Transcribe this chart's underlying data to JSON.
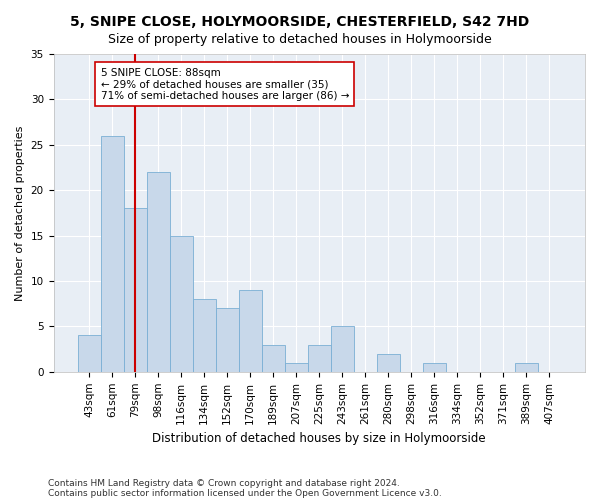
{
  "title": "5, SNIPE CLOSE, HOLYMOORSIDE, CHESTERFIELD, S42 7HD",
  "subtitle": "Size of property relative to detached houses in Holymoorside",
  "xlabel": "Distribution of detached houses by size in Holymoorside",
  "ylabel": "Number of detached properties",
  "categories": [
    "43sqm",
    "61sqm",
    "79sqm",
    "98sqm",
    "116sqm",
    "134sqm",
    "152sqm",
    "170sqm",
    "189sqm",
    "207sqm",
    "225sqm",
    "243sqm",
    "261sqm",
    "280sqm",
    "298sqm",
    "316sqm",
    "334sqm",
    "352sqm",
    "371sqm",
    "389sqm",
    "407sqm"
  ],
  "values": [
    4,
    26,
    18,
    22,
    15,
    8,
    7,
    9,
    3,
    1,
    3,
    5,
    0,
    2,
    0,
    1,
    0,
    0,
    0,
    1,
    0
  ],
  "bar_color": "#c8d8ea",
  "bar_edge_color": "#7aafd4",
  "bar_width": 1.0,
  "vline_x": 2.0,
  "vline_color": "#cc0000",
  "annotation_text": "5 SNIPE CLOSE: 88sqm\n← 29% of detached houses are smaller (35)\n71% of semi-detached houses are larger (86) →",
  "annotation_box_color": "#ffffff",
  "annotation_box_edge": "#cc0000",
  "ylim": [
    0,
    35
  ],
  "yticks": [
    0,
    5,
    10,
    15,
    20,
    25,
    30,
    35
  ],
  "footnote1": "Contains HM Land Registry data © Crown copyright and database right 2024.",
  "footnote2": "Contains public sector information licensed under the Open Government Licence v3.0.",
  "bg_color": "#ffffff",
  "plot_bg_color": "#e8eef5",
  "grid_color": "#ffffff",
  "title_fontsize": 10,
  "subtitle_fontsize": 9,
  "xlabel_fontsize": 8.5,
  "ylabel_fontsize": 8,
  "tick_fontsize": 7.5,
  "annotation_fontsize": 7.5,
  "footnote_fontsize": 6.5
}
